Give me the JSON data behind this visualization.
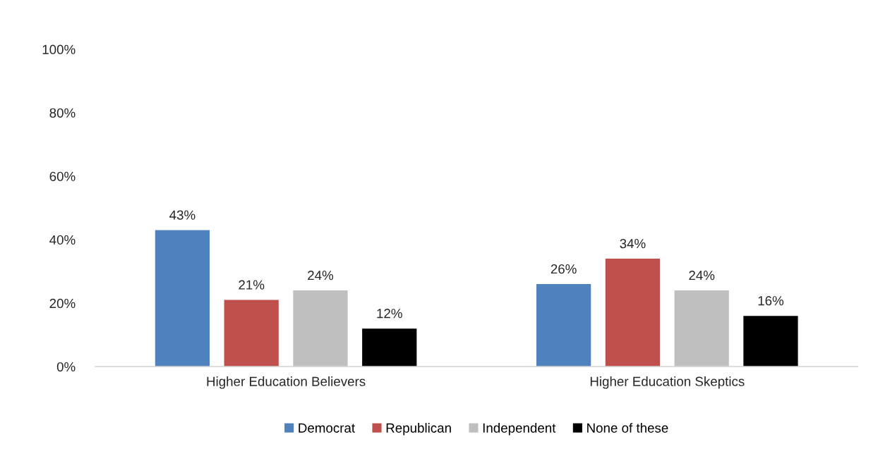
{
  "chart_data": {
    "type": "bar",
    "categories": [
      "Higher Education Believers",
      "Higher Education Skeptics"
    ],
    "series": [
      {
        "name": "Democrat",
        "color": "#4f81bd",
        "values": [
          43,
          26
        ],
        "value_labels": [
          "43%",
          "26%"
        ]
      },
      {
        "name": "Republican",
        "color": "#c0504d",
        "values": [
          21,
          34
        ],
        "value_labels": [
          "21%",
          "34%"
        ]
      },
      {
        "name": "Independent",
        "color": "#bfbfbf",
        "values": [
          24,
          24
        ],
        "value_labels": [
          "24%",
          "24%"
        ]
      },
      {
        "name": "None of these",
        "color": "#000000",
        "values": [
          12,
          16
        ],
        "value_labels": [
          "12%",
          "16%"
        ]
      }
    ],
    "ylim": [
      0,
      100
    ],
    "yticks": [
      {
        "value": 0,
        "label": "0%"
      },
      {
        "value": 20,
        "label": "20%"
      },
      {
        "value": 40,
        "label": "40%"
      },
      {
        "value": 60,
        "label": "60%"
      },
      {
        "value": 80,
        "label": "80%"
      },
      {
        "value": 100,
        "label": "100%"
      }
    ],
    "grid": false,
    "legend": "bottom"
  }
}
